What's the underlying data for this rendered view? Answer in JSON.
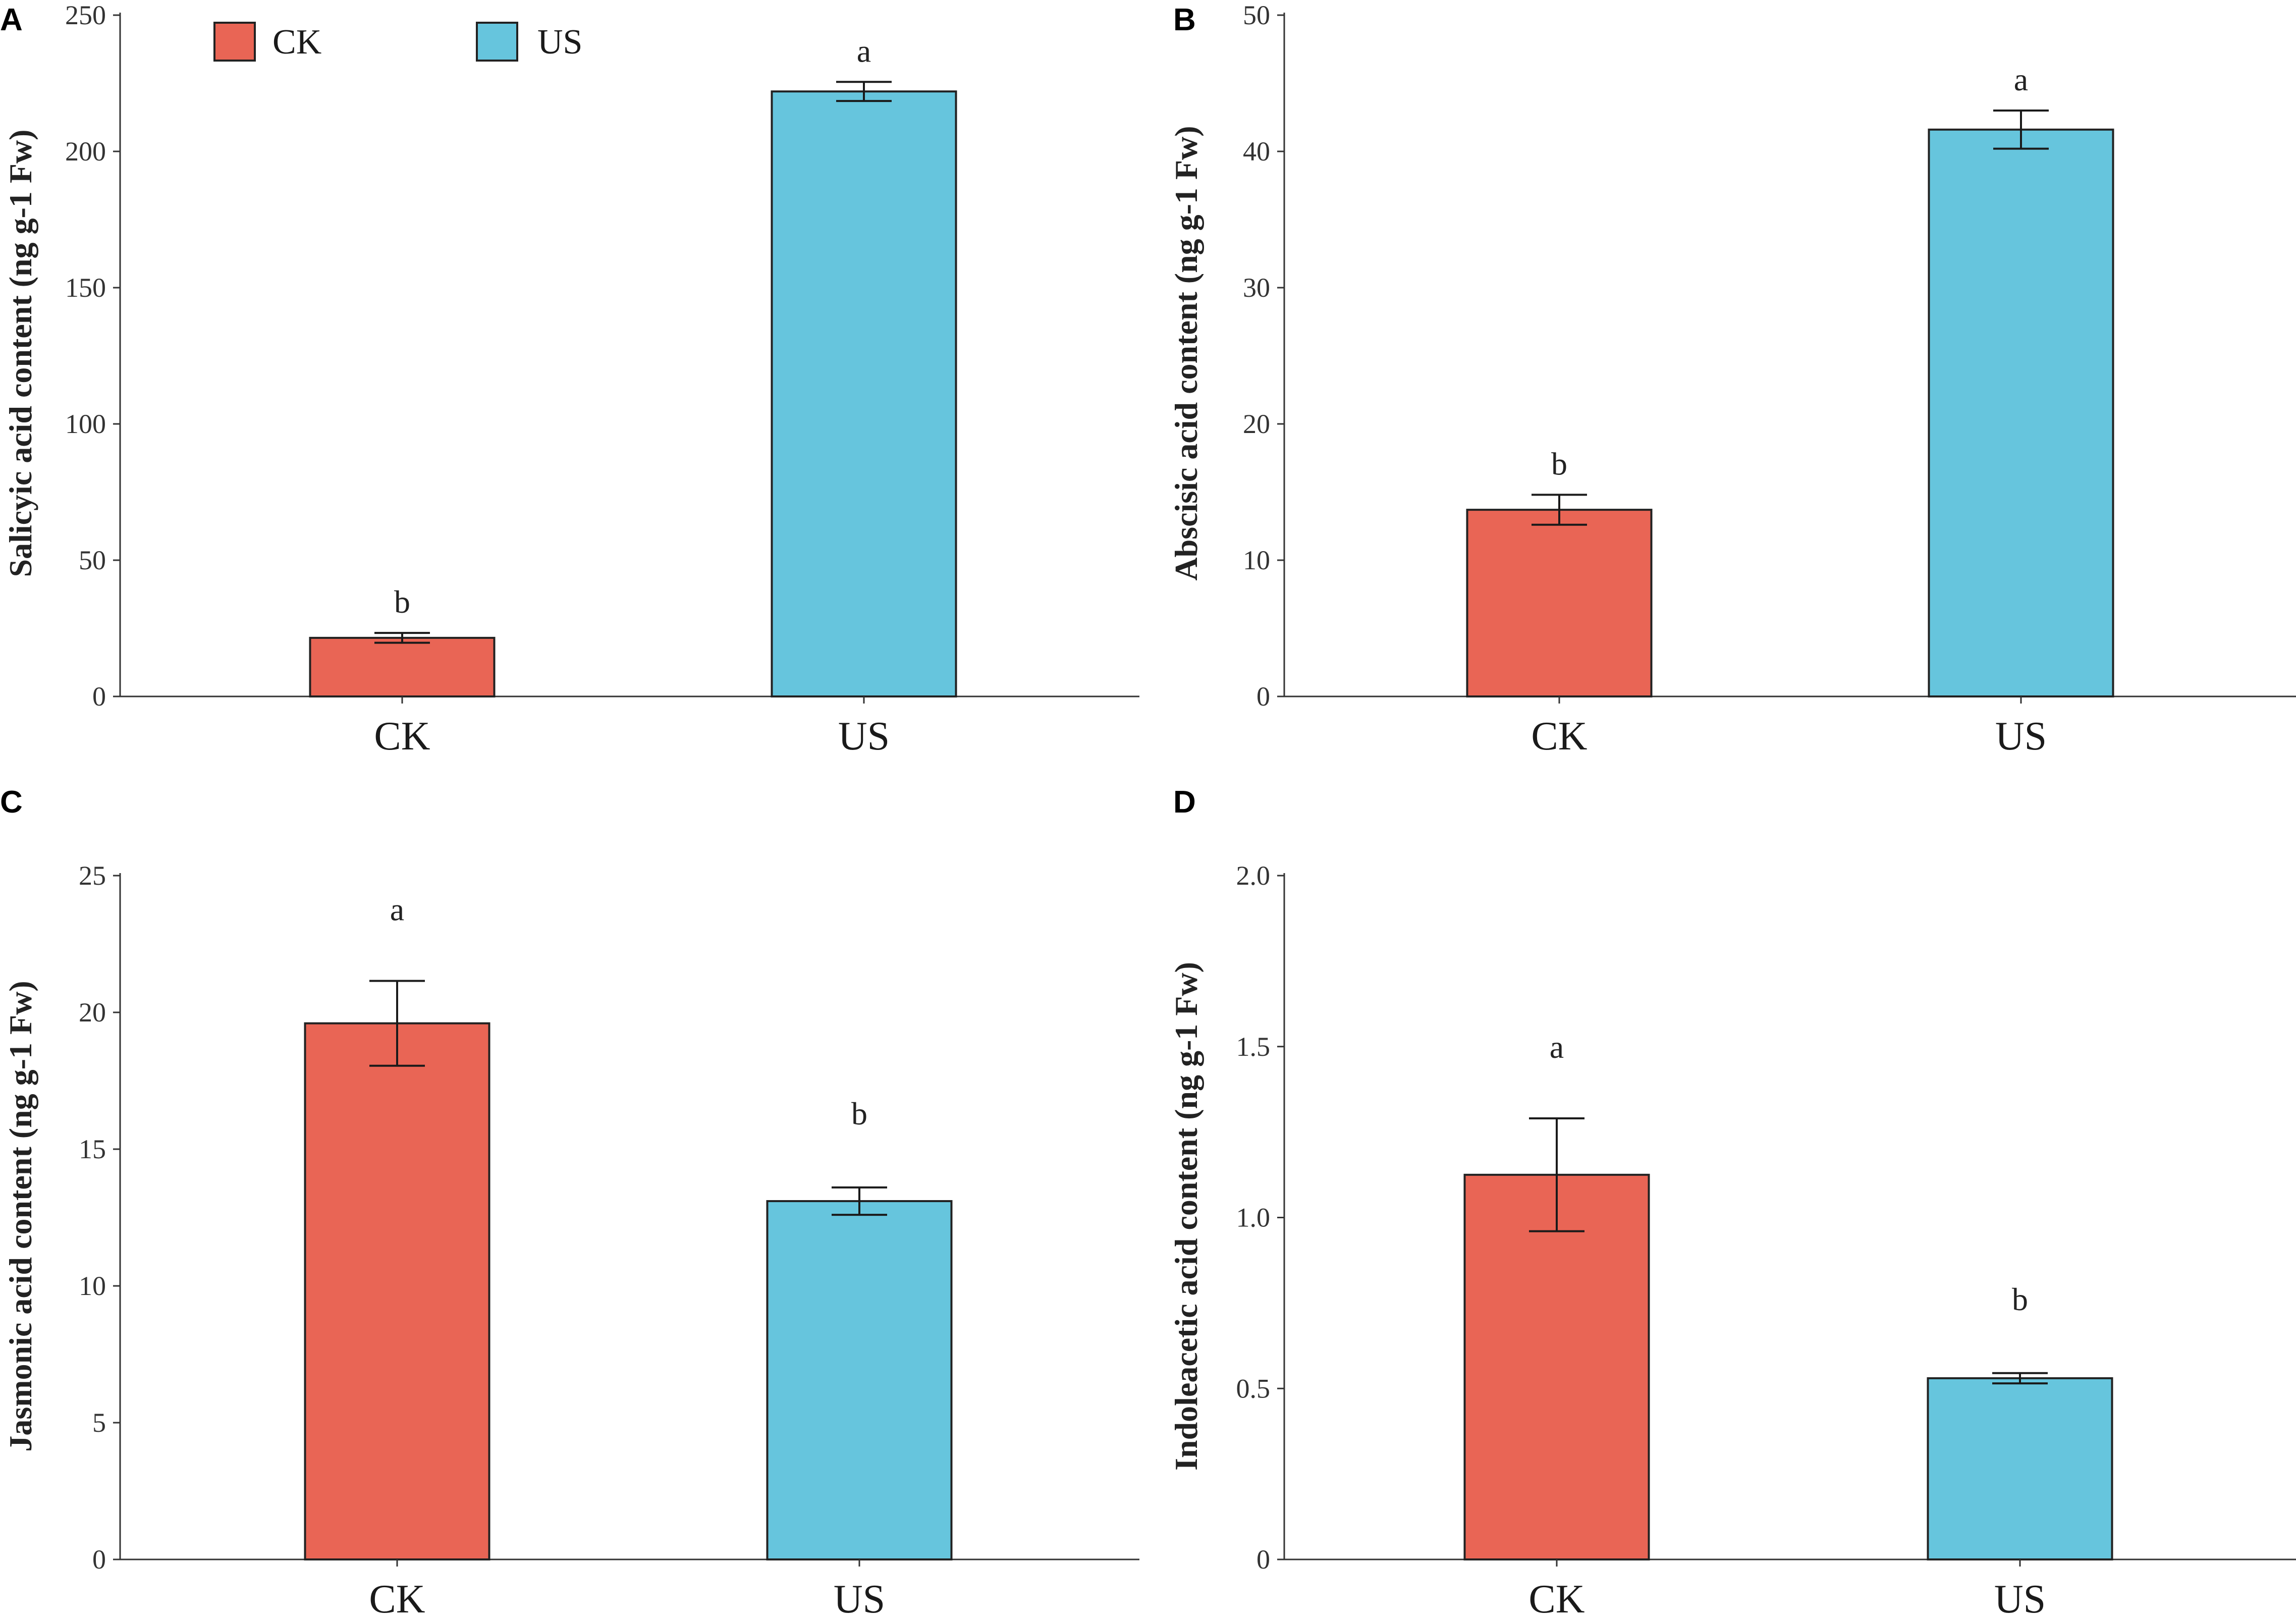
{
  "legend": [
    {
      "label": "CK",
      "color": "#E96555"
    },
    {
      "label": "US",
      "color": "#66C5DD"
    }
  ],
  "chart_data": [
    {
      "panel": "A",
      "type": "bar",
      "categories": [
        "CK",
        "US"
      ],
      "values": [
        21.5,
        222
      ],
      "errors": [
        1.8,
        3.5
      ],
      "significance": [
        "b",
        "a"
      ],
      "colors": [
        "#E96555",
        "#66C5DD"
      ],
      "ylabel": "Salicyic acid content (ng g-1 Fw)",
      "ylim": [
        0,
        250
      ],
      "ticks": [
        0,
        50,
        100,
        150,
        200,
        250
      ],
      "tick_labels": [
        "0",
        "50",
        "100",
        "150",
        "200",
        "250"
      ]
    },
    {
      "panel": "B",
      "type": "bar",
      "categories": [
        "CK",
        "US"
      ],
      "values": [
        13.7,
        41.6
      ],
      "errors": [
        1.1,
        1.4
      ],
      "significance": [
        "b",
        "a"
      ],
      "colors": [
        "#E96555",
        "#66C5DD"
      ],
      "ylabel": "Abscisic acid content (ng g-1 Fw)",
      "ylim": [
        0,
        50
      ],
      "ticks": [
        0,
        10,
        20,
        30,
        40,
        50
      ],
      "tick_labels": [
        "0",
        "10",
        "20",
        "30",
        "40",
        "50"
      ]
    },
    {
      "panel": "C",
      "type": "bar",
      "categories": [
        "CK",
        "US"
      ],
      "values": [
        19.6,
        13.1
      ],
      "errors": [
        1.55,
        0.5
      ],
      "significance": [
        "a",
        "b"
      ],
      "colors": [
        "#E96555",
        "#66C5DD"
      ],
      "ylabel": "Jasmonic acid content (ng g-1 Fw)",
      "ylim": [
        0,
        25
      ],
      "ticks": [
        0,
        5,
        10,
        15,
        20,
        25
      ],
      "tick_labels": [
        "0",
        "5",
        "10",
        "15",
        "20",
        "25"
      ]
    },
    {
      "panel": "D",
      "type": "bar",
      "categories": [
        "CK",
        "US"
      ],
      "values": [
        1.125,
        0.53
      ],
      "errors": [
        0.165,
        0.015
      ],
      "significance": [
        "a",
        "b"
      ],
      "colors": [
        "#E96555",
        "#66C5DD"
      ],
      "ylabel": "Indoleacetic acid content (ng g-1 Fw)",
      "ylim": [
        0,
        2.0
      ],
      "ticks": [
        0,
        0.5,
        1.0,
        1.5,
        2.0
      ],
      "tick_labels": [
        "0",
        "0.5",
        "1.0",
        "1.5",
        "2.0"
      ]
    }
  ]
}
